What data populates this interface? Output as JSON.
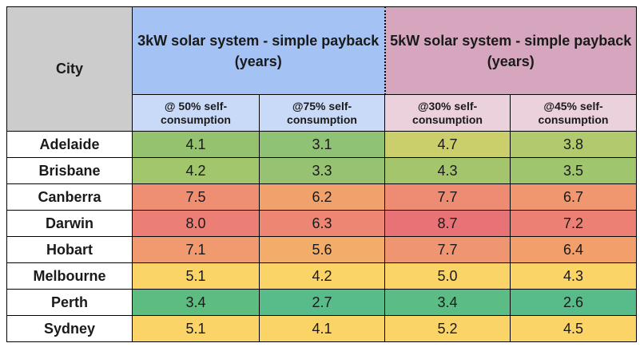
{
  "table": {
    "city_header": "City",
    "groups": [
      {
        "label": "3kW solar system - simple payback (years)"
      },
      {
        "label": "5kW solar system - simple payback (years)"
      }
    ],
    "subheaders": [
      "@ 50% self-consumption",
      "@75% self-consumption",
      "@30% self-consumption",
      "@45% self-consumption"
    ],
    "rows": [
      {
        "city": "Adelaide",
        "values": [
          "4.1",
          "3.1",
          "4.7",
          "3.8"
        ],
        "colors": [
          "#95c26f",
          "#8fc275",
          "#cbcf6b",
          "#b0ca6d"
        ]
      },
      {
        "city": "Brisbane",
        "values": [
          "4.2",
          "3.3",
          "4.3",
          "3.5"
        ],
        "colors": [
          "#a2c66c",
          "#97c271",
          "#a5c56c",
          "#9fc56f"
        ]
      },
      {
        "city": "Canberra",
        "values": [
          "7.5",
          "6.2",
          "7.7",
          "6.7"
        ],
        "colors": [
          "#ee8e73",
          "#f1a26c",
          "#ed8b73",
          "#f0976f"
        ]
      },
      {
        "city": "Darwin",
        "values": [
          "8.0",
          "6.3",
          "8.7",
          "7.2"
        ],
        "colors": [
          "#eb7f76",
          "#ed8773",
          "#e87376",
          "#ec8075"
        ]
      },
      {
        "city": "Hobart",
        "values": [
          "7.1",
          "5.6",
          "7.7",
          "6.4"
        ],
        "colors": [
          "#f19a6f",
          "#f3ad6a",
          "#ef9571",
          "#f29f6c"
        ]
      },
      {
        "city": "Melbourne",
        "values": [
          "5.1",
          "4.2",
          "5.0",
          "4.3"
        ],
        "colors": [
          "#fbd468",
          "#fbd468",
          "#fbd468",
          "#fbd468"
        ]
      },
      {
        "city": "Perth",
        "values": [
          "3.4",
          "2.7",
          "3.4",
          "2.6"
        ],
        "colors": [
          "#5dbd81",
          "#57bb8a",
          "#5bbc86",
          "#57bb8a"
        ]
      },
      {
        "city": "Sydney",
        "values": [
          "5.1",
          "4.1",
          "5.2",
          "4.5"
        ],
        "colors": [
          "#fbd468",
          "#fbd468",
          "#fbd468",
          "#fbd468"
        ]
      }
    ]
  }
}
